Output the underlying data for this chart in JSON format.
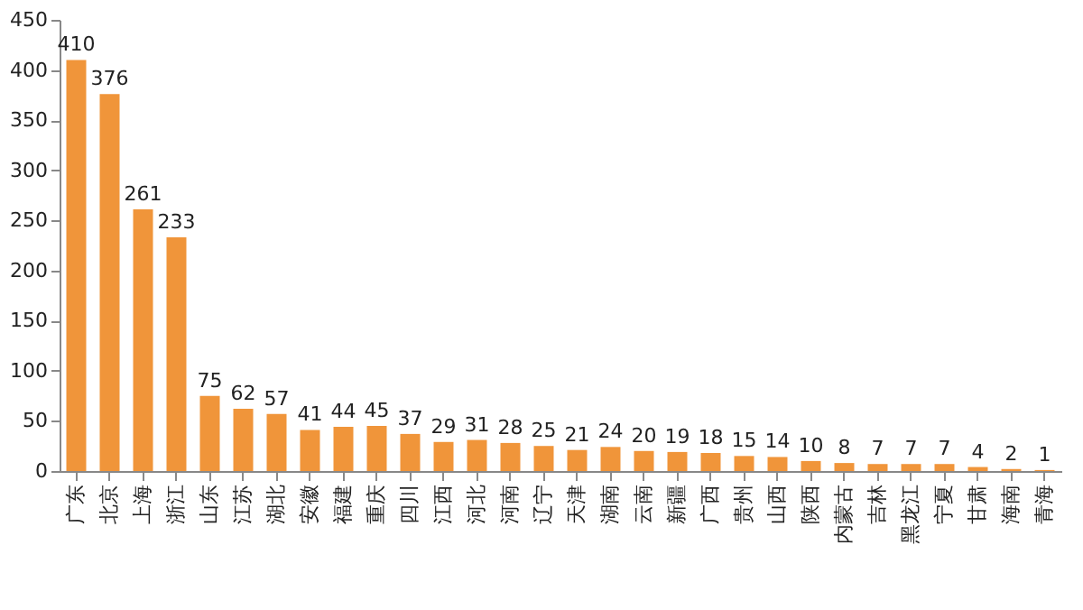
{
  "chart_data": {
    "type": "bar",
    "categories": [
      "广东",
      "北京",
      "上海",
      "浙江",
      "山东",
      "江苏",
      "湖北",
      "安徽",
      "福建",
      "重庆",
      "四川",
      "江西",
      "河北",
      "河南",
      "辽宁",
      "天津",
      "湖南",
      "云南",
      "新疆",
      "广西",
      "贵州",
      "山西",
      "陕西",
      "内蒙古",
      "吉林",
      "黑龙江",
      "宁夏",
      "甘肃",
      "海南",
      "青海"
    ],
    "values": [
      410,
      376,
      261,
      233,
      75,
      62,
      57,
      41,
      44,
      45,
      37,
      29,
      31,
      28,
      25,
      21,
      24,
      20,
      19,
      18,
      15,
      14,
      10,
      8,
      7,
      7,
      7,
      4,
      2,
      1
    ],
    "color": "#f0953a",
    "ylim": [
      0,
      450
    ],
    "yticks": [
      0,
      50,
      100,
      150,
      200,
      250,
      300,
      350,
      400,
      450
    ],
    "grid": false,
    "data_labels": true
  }
}
